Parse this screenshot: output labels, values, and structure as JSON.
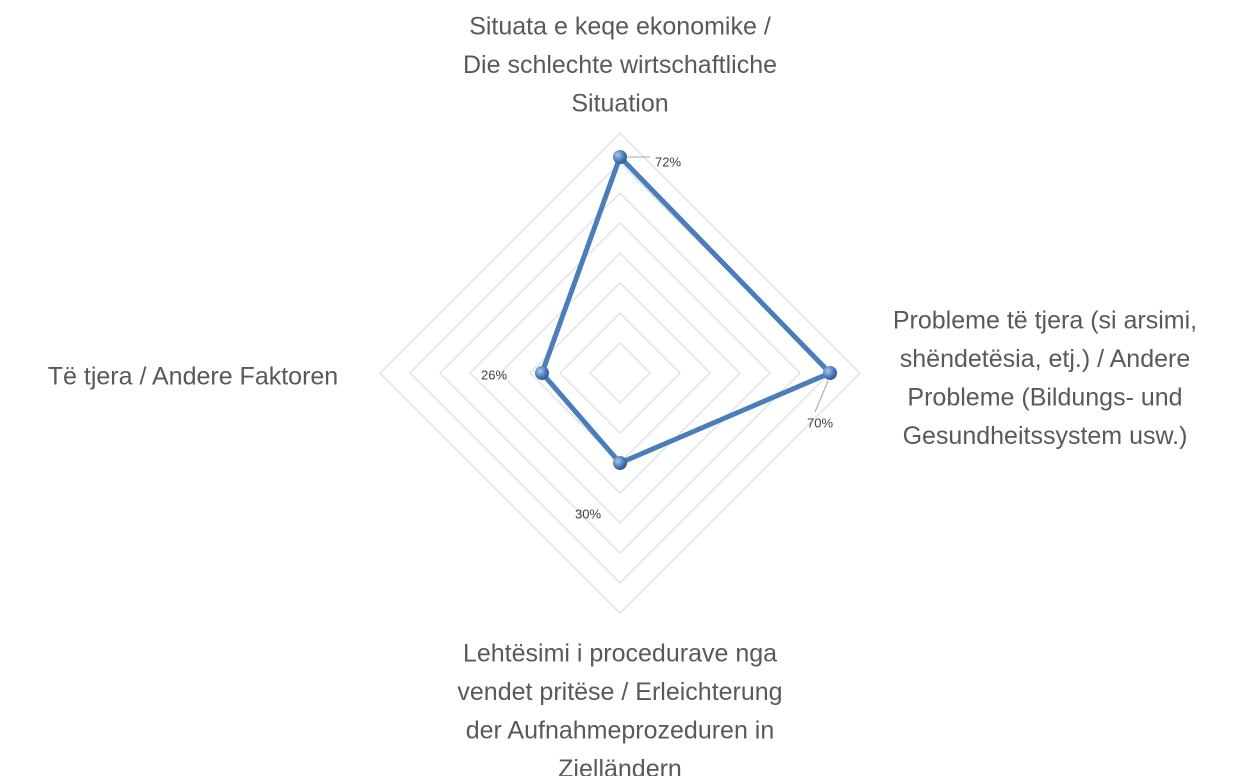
{
  "chart_data": {
    "type": "radar",
    "categories": [
      [
        "Situata e keqe ekonomike /",
        "Die schlechte wirtschaftliche",
        "Situation"
      ],
      [
        "Probleme të tjera (si arsimi,",
        "shëndetësia, etj.) / Andere",
        "Probleme (Bildungs- und",
        "Gesundheitssystem usw.)"
      ],
      [
        "Lehtësimi i procedurave nga",
        "vendet pritëse / Erleichterung",
        "der Aufnahmeprozeduren in",
        "Zielländern"
      ],
      [
        "Të tjera  / Andere Faktoren"
      ]
    ],
    "series": [
      {
        "color": "#4a7ebb",
        "values": [
          72,
          70,
          30,
          26
        ],
        "value_labels": [
          "72%",
          "70%",
          "30%",
          "26%"
        ]
      }
    ],
    "rlim": [
      0,
      80
    ],
    "rticks": [
      10,
      20,
      30,
      40,
      50,
      60,
      70,
      80
    ],
    "grid": true
  }
}
